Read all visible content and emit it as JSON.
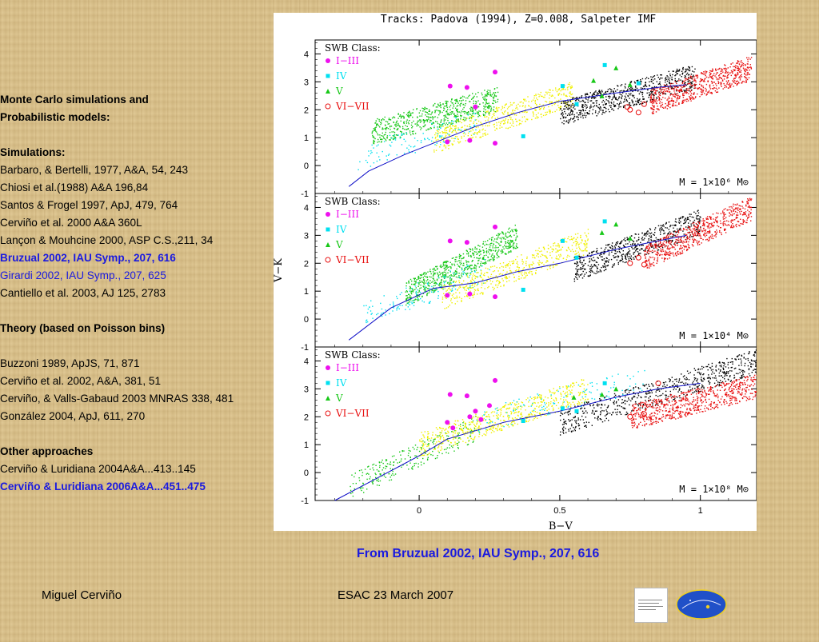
{
  "references": {
    "heading": [
      "Monte Carlo simulations and",
      "Probabilistic models:"
    ],
    "simulations_title": "Simulations:",
    "simulations": [
      {
        "text": "Barbaro, & Bertelli,  1977,  A&A, 54, 243",
        "style": "normal"
      },
      {
        "text": "Chiosi et al.(1988) A&A 196,84",
        "style": "normal"
      },
      {
        "text": "Santos & Frogel 1997, ApJ, 479, 764",
        "style": "normal"
      },
      {
        "text": "Cerviño et al. 2000 A&A 360L",
        "style": "normal"
      },
      {
        "text": "Lançon &  Mouhcine 2000, ASP C.S.,211, 34",
        "style": "normal"
      },
      {
        "text": "Bruzual 2002, IAU Symp., 207, 616",
        "style": "bluebold"
      },
      {
        "text": "Girardi  2002, IAU Symp., 207, 625",
        "style": "blue"
      },
      {
        "text": "Cantiello et al. 2003, AJ 125, 2783",
        "style": "normal"
      }
    ],
    "theory_title": "Theory (based on Poisson bins)",
    "theory": [
      "Buzzoni 1989, ApJS, 71, 871",
      "Cerviño et al. 2002, A&A, 381, 51",
      "Cerviño, & Valls-Gabaud 2003 MNRAS 338, 481",
      "González 2004, ApJ, 611, 270"
    ],
    "other_title": "Other approaches",
    "other": [
      {
        "text": "Cerviño & Luridiana 2004A&A...413..145",
        "style": "normal"
      },
      {
        "text": "Cerviño & Luridiana 2006A&A...451..475",
        "style": "bluebold"
      }
    ]
  },
  "caption": "From Bruzual 2002, IAU Symp., 207, 616",
  "footer": {
    "author": "Miguel Cerviño",
    "event": "ESAC 23 March  2007"
  },
  "colors": {
    "classI_III": "#ee10ee",
    "classIV": "#00e0f0",
    "classV": "#18c818",
    "classVI_VII": "#e81010",
    "yellow": "#f0f000",
    "black": "#000000",
    "track": "#1010c8",
    "link": "#1a1adf"
  },
  "chart_data": {
    "type": "scatter",
    "title": "Tracks: Padova (1994), Z=0.008, Salpeter IMF",
    "xlabel": "B−V",
    "ylabel": "V−K",
    "xlim": [
      -0.37,
      1.2
    ],
    "ylim": [
      -1,
      4.5
    ],
    "xticks": [
      "0",
      "0.5",
      "1"
    ],
    "yticks": [
      "-1",
      "0",
      "1",
      "2",
      "3",
      "4"
    ],
    "legend_title": "SWB Class:",
    "legend": [
      "I−III",
      "IV",
      "V",
      "VI−VII"
    ],
    "panels": [
      {
        "mass_label": "M = 1×10⁶ M⊙",
        "classes": {
          "I-III": [
            [
              0.11,
              2.85
            ],
            [
              0.17,
              2.8
            ],
            [
              0.27,
              3.35
            ],
            [
              0.1,
              0.85
            ],
            [
              0.18,
              0.9
            ],
            [
              0.27,
              0.8
            ],
            [
              0.2,
              2.1
            ]
          ],
          "IV": [
            [
              0.37,
              1.05
            ],
            [
              0.51,
              2.85
            ],
            [
              0.56,
              2.2
            ],
            [
              0.66,
              3.6
            ],
            [
              0.78,
              2.95
            ]
          ],
          "V": [
            [
              0.62,
              3.05
            ],
            [
              0.7,
              3.5
            ],
            [
              0.75,
              2.9
            ],
            [
              0.65,
              2.5
            ]
          ],
          "VI-VII": [
            [
              0.75,
              2.0
            ],
            [
              0.78,
              1.9
            ],
            [
              0.8,
              2.2
            ],
            [
              0.74,
              2.1
            ]
          ]
        },
        "clouds": [
          {
            "color": "green",
            "x": [
              -0.17,
              0.28
            ],
            "y": [
              1.2,
              2.4
            ],
            "n": 650
          },
          {
            "color": "cyan",
            "x": [
              -0.22,
              0.2
            ],
            "y": [
              0.3,
              1.6
            ],
            "n": 120
          },
          {
            "color": "yellow",
            "x": [
              0.05,
              0.55
            ],
            "y": [
              0.9,
              2.6
            ],
            "n": 500
          },
          {
            "color": "black",
            "x": [
              0.5,
              0.98
            ],
            "y": [
              1.9,
              3.2
            ],
            "n": 700
          },
          {
            "color": "red",
            "x": [
              0.82,
              1.18
            ],
            "y": [
              2.3,
              3.5
            ],
            "n": 650
          }
        ],
        "track": [
          [
            -0.25,
            -0.75
          ],
          [
            -0.18,
            -0.2
          ],
          [
            -0.05,
            0.4
          ],
          [
            0.1,
            1.0
          ],
          [
            0.2,
            1.4
          ],
          [
            0.35,
            1.9
          ],
          [
            0.5,
            2.3
          ],
          [
            0.7,
            2.6
          ],
          [
            0.85,
            2.8
          ],
          [
            0.95,
            2.9
          ]
        ]
      },
      {
        "mass_label": "M = 1×10⁴ M⊙",
        "classes": {
          "I-III": [
            [
              0.11,
              2.8
            ],
            [
              0.17,
              2.75
            ],
            [
              0.27,
              3.3
            ],
            [
              0.1,
              0.85
            ],
            [
              0.18,
              0.9
            ],
            [
              0.27,
              0.8
            ]
          ],
          "IV": [
            [
              0.37,
              1.05
            ],
            [
              0.51,
              2.8
            ],
            [
              0.56,
              2.2
            ],
            [
              0.66,
              3.5
            ]
          ],
          "V": [
            [
              0.65,
              3.1
            ],
            [
              0.7,
              3.4
            ],
            [
              0.75,
              2.9
            ]
          ],
          "VI-VII": [
            [
              0.75,
              2.0
            ],
            [
              0.8,
              1.95
            ],
            [
              0.78,
              2.2
            ]
          ]
        },
        "clouds": [
          {
            "color": "green",
            "x": [
              -0.05,
              0.35
            ],
            "y": [
              0.9,
              3.0
            ],
            "n": 700
          },
          {
            "color": "cyan",
            "x": [
              -0.2,
              0.25
            ],
            "y": [
              0.2,
              1.8
            ],
            "n": 150
          },
          {
            "color": "yellow",
            "x": [
              0.08,
              0.6
            ],
            "y": [
              0.8,
              2.8
            ],
            "n": 500
          },
          {
            "color": "black",
            "x": [
              0.55,
              1.0
            ],
            "y": [
              1.8,
              3.5
            ],
            "n": 600
          },
          {
            "color": "red",
            "x": [
              0.8,
              1.18
            ],
            "y": [
              2.2,
              4.0
            ],
            "n": 650
          }
        ],
        "track": [
          [
            -0.25,
            -0.75
          ],
          [
            -0.1,
            0.4
          ],
          [
            0.05,
            1.1
          ],
          [
            0.2,
            1.3
          ],
          [
            0.35,
            1.7
          ],
          [
            0.5,
            2.0
          ],
          [
            0.7,
            2.5
          ],
          [
            0.85,
            2.8
          ],
          [
            0.95,
            3.0
          ]
        ]
      },
      {
        "mass_label": "M = 1×10⁸ M⊙",
        "classes": {
          "I-III": [
            [
              0.11,
              2.8
            ],
            [
              0.17,
              2.75
            ],
            [
              0.27,
              3.3
            ],
            [
              0.1,
              1.8
            ],
            [
              0.18,
              2.0
            ],
            [
              0.22,
              1.9
            ],
            [
              0.12,
              1.6
            ],
            [
              0.2,
              2.2
            ],
            [
              0.25,
              2.4
            ]
          ],
          "IV": [
            [
              0.37,
              1.85
            ],
            [
              0.51,
              2.3
            ],
            [
              0.56,
              2.2
            ],
            [
              0.66,
              3.2
            ]
          ],
          "V": [
            [
              0.55,
              2.7
            ],
            [
              0.65,
              2.8
            ],
            [
              0.7,
              3.0
            ]
          ],
          "VI-VII": [
            [
              0.75,
              2.0
            ],
            [
              0.8,
              2.1
            ],
            [
              0.85,
              3.2
            ]
          ]
        },
        "clouds": [
          {
            "color": "green",
            "x": [
              -0.25,
              0.2
            ],
            "y": [
              -0.5,
              1.6
            ],
            "n": 250
          },
          {
            "color": "yellow",
            "x": [
              0.0,
              0.6
            ],
            "y": [
              1.0,
              3.0
            ],
            "n": 600
          },
          {
            "color": "black",
            "x": [
              0.5,
              1.2
            ],
            "y": [
              1.8,
              4.0
            ],
            "n": 650
          },
          {
            "color": "red",
            "x": [
              0.75,
              1.2
            ],
            "y": [
              2.0,
              3.1
            ],
            "n": 700
          },
          {
            "color": "cyan",
            "x": [
              0.2,
              0.8
            ],
            "y": [
              1.8,
              3.4
            ],
            "n": 120
          }
        ],
        "track": [
          [
            -0.3,
            -1.0
          ],
          [
            -0.15,
            -0.2
          ],
          [
            0.0,
            0.6
          ],
          [
            0.1,
            1.2
          ],
          [
            0.3,
            1.8
          ],
          [
            0.5,
            2.2
          ],
          [
            0.7,
            2.7
          ],
          [
            0.85,
            3.0
          ],
          [
            1.0,
            3.2
          ]
        ]
      }
    ]
  }
}
